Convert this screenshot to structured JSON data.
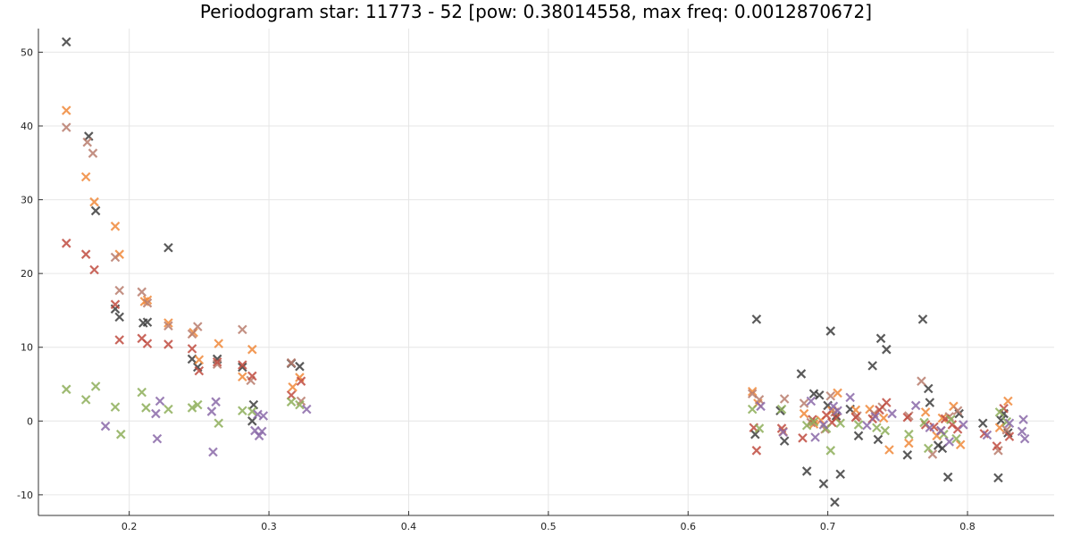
{
  "chart_data": {
    "type": "scatter",
    "title": "Periodogram star: 11773 - 52 [pow: 0.38014558, max freq: 0.0012870672]",
    "xlabel": "",
    "ylabel": "",
    "xlim": [
      0.135,
      0.862
    ],
    "ylim": [
      -12.8,
      53.2
    ],
    "grid": true,
    "legend": "none",
    "marker": "x",
    "x_ticks": [
      0.2,
      0.3,
      0.4,
      0.5,
      0.6,
      0.7,
      0.8
    ],
    "x_tick_labels": [
      "0.2",
      "0.3",
      "0.4",
      "0.5",
      "0.6",
      "0.7",
      "0.8"
    ],
    "y_ticks": [
      -10,
      0,
      10,
      20,
      30,
      40,
      50
    ],
    "y_tick_labels": [
      "-10",
      "0",
      "10",
      "20",
      "30",
      "40",
      "50"
    ],
    "series": [
      {
        "color": "#3d3d3d",
        "points": [
          [
            0.155,
            51.4
          ],
          [
            0.171,
            38.6
          ],
          [
            0.176,
            28.5
          ],
          [
            0.19,
            15.2
          ],
          [
            0.193,
            14.1
          ],
          [
            0.21,
            13.3
          ],
          [
            0.213,
            13.4
          ],
          [
            0.228,
            23.5
          ],
          [
            0.245,
            8.4
          ],
          [
            0.249,
            7.3
          ],
          [
            0.263,
            8.4
          ],
          [
            0.281,
            7.3
          ],
          [
            0.289,
            2.2
          ],
          [
            0.288,
            0.0
          ],
          [
            0.316,
            7.8
          ],
          [
            0.322,
            7.4
          ],
          [
            0.648,
            -1.8
          ],
          [
            0.649,
            13.8
          ],
          [
            0.666,
            1.4
          ],
          [
            0.669,
            -2.7
          ],
          [
            0.681,
            6.4
          ],
          [
            0.685,
            -6.8
          ],
          [
            0.69,
            3.7
          ],
          [
            0.694,
            3.5
          ],
          [
            0.697,
            -8.5
          ],
          [
            0.7,
            2.1
          ],
          [
            0.702,
            12.2
          ],
          [
            0.705,
            -11.0
          ],
          [
            0.706,
            0.7
          ],
          [
            0.709,
            -7.2
          ],
          [
            0.716,
            1.6
          ],
          [
            0.722,
            -2.0
          ],
          [
            0.732,
            7.5
          ],
          [
            0.736,
            -2.5
          ],
          [
            0.738,
            11.2
          ],
          [
            0.742,
            9.7
          ],
          [
            0.757,
            -4.6
          ],
          [
            0.768,
            13.8
          ],
          [
            0.772,
            4.4
          ],
          [
            0.773,
            2.5
          ],
          [
            0.779,
            -3.3
          ],
          [
            0.782,
            -3.7
          ],
          [
            0.786,
            -7.6
          ],
          [
            0.794,
            1.0
          ],
          [
            0.811,
            -0.3
          ],
          [
            0.822,
            -7.7
          ],
          [
            0.824,
            0.1
          ],
          [
            0.826,
            1.0
          ],
          [
            0.829,
            -1.6
          ]
        ]
      },
      {
        "color": "#f0883a",
        "points": [
          [
            0.155,
            42.1
          ],
          [
            0.169,
            33.1
          ],
          [
            0.175,
            29.7
          ],
          [
            0.19,
            26.4
          ],
          [
            0.193,
            22.6
          ],
          [
            0.211,
            16.2
          ],
          [
            0.213,
            16.4
          ],
          [
            0.228,
            13.3
          ],
          [
            0.246,
            12.0
          ],
          [
            0.25,
            8.3
          ],
          [
            0.264,
            10.5
          ],
          [
            0.281,
            6.0
          ],
          [
            0.288,
            9.7
          ],
          [
            0.317,
            4.6
          ],
          [
            0.322,
            5.9
          ],
          [
            0.646,
            4.0
          ],
          [
            0.65,
            2.4
          ],
          [
            0.668,
            -1.4
          ],
          [
            0.683,
            1.0
          ],
          [
            0.69,
            -0.4
          ],
          [
            0.695,
            0.1
          ],
          [
            0.703,
            1.4
          ],
          [
            0.707,
            3.8
          ],
          [
            0.72,
            1.5
          ],
          [
            0.73,
            1.6
          ],
          [
            0.74,
            0.4
          ],
          [
            0.744,
            -3.9
          ],
          [
            0.758,
            -3.0
          ],
          [
            0.77,
            1.2
          ],
          [
            0.778,
            -2.0
          ],
          [
            0.782,
            0.4
          ],
          [
            0.79,
            2.0
          ],
          [
            0.795,
            -3.2
          ],
          [
            0.823,
            -0.9
          ],
          [
            0.829,
            2.7
          ]
        ]
      },
      {
        "color": "#b87d6d",
        "points": [
          [
            0.155,
            39.8
          ],
          [
            0.17,
            37.8
          ],
          [
            0.174,
            36.3
          ],
          [
            0.19,
            22.2
          ],
          [
            0.193,
            17.7
          ],
          [
            0.209,
            17.5
          ],
          [
            0.213,
            16.0
          ],
          [
            0.228,
            12.9
          ],
          [
            0.245,
            11.8
          ],
          [
            0.249,
            12.8
          ],
          [
            0.263,
            7.7
          ],
          [
            0.281,
            12.4
          ],
          [
            0.287,
            5.5
          ],
          [
            0.316,
            7.9
          ],
          [
            0.323,
            2.7
          ],
          [
            0.646,
            3.7
          ],
          [
            0.651,
            2.9
          ],
          [
            0.669,
            3.0
          ],
          [
            0.683,
            2.4
          ],
          [
            0.688,
            -0.2
          ],
          [
            0.698,
            -1.1
          ],
          [
            0.702,
            3.4
          ],
          [
            0.705,
            1.2
          ],
          [
            0.721,
            0.7
          ],
          [
            0.733,
            1.0
          ],
          [
            0.739,
            1.9
          ],
          [
            0.758,
            0.7
          ],
          [
            0.767,
            5.4
          ],
          [
            0.775,
            -4.5
          ],
          [
            0.781,
            -1.3
          ],
          [
            0.787,
            0.6
          ],
          [
            0.793,
            1.4
          ],
          [
            0.822,
            -4.0
          ],
          [
            0.828,
            -1.2
          ]
        ]
      },
      {
        "color": "#c04b3f",
        "points": [
          [
            0.155,
            24.1
          ],
          [
            0.169,
            22.6
          ],
          [
            0.175,
            20.5
          ],
          [
            0.19,
            15.8
          ],
          [
            0.193,
            11.0
          ],
          [
            0.209,
            11.2
          ],
          [
            0.213,
            10.5
          ],
          [
            0.228,
            10.4
          ],
          [
            0.245,
            9.8
          ],
          [
            0.25,
            6.8
          ],
          [
            0.263,
            8.0
          ],
          [
            0.281,
            7.6
          ],
          [
            0.288,
            6.1
          ],
          [
            0.316,
            3.5
          ],
          [
            0.323,
            5.4
          ],
          [
            0.647,
            -0.9
          ],
          [
            0.649,
            -4.0
          ],
          [
            0.667,
            -1.0
          ],
          [
            0.682,
            -2.3
          ],
          [
            0.689,
            0.2
          ],
          [
            0.699,
            0.8
          ],
          [
            0.703,
            -0.2
          ],
          [
            0.706,
            0.4
          ],
          [
            0.72,
            0.5
          ],
          [
            0.732,
            0.3
          ],
          [
            0.737,
            1.5
          ],
          [
            0.742,
            2.5
          ],
          [
            0.757,
            0.5
          ],
          [
            0.77,
            -0.5
          ],
          [
            0.776,
            -0.8
          ],
          [
            0.784,
            0.3
          ],
          [
            0.789,
            -0.5
          ],
          [
            0.793,
            -1.1
          ],
          [
            0.812,
            -1.7
          ],
          [
            0.821,
            -3.4
          ],
          [
            0.826,
            1.7
          ],
          [
            0.83,
            -2.1
          ]
        ]
      },
      {
        "color": "#8dae59",
        "points": [
          [
            0.155,
            4.3
          ],
          [
            0.169,
            2.9
          ],
          [
            0.176,
            4.7
          ],
          [
            0.19,
            1.9
          ],
          [
            0.194,
            -1.8
          ],
          [
            0.209,
            3.9
          ],
          [
            0.212,
            1.8
          ],
          [
            0.228,
            1.6
          ],
          [
            0.245,
            1.8
          ],
          [
            0.249,
            2.2
          ],
          [
            0.264,
            -0.3
          ],
          [
            0.281,
            1.4
          ],
          [
            0.288,
            1.3
          ],
          [
            0.316,
            2.6
          ],
          [
            0.322,
            2.2
          ],
          [
            0.646,
            1.6
          ],
          [
            0.651,
            -1.0
          ],
          [
            0.667,
            1.6
          ],
          [
            0.685,
            -0.6
          ],
          [
            0.69,
            -0.1
          ],
          [
            0.699,
            -1.0
          ],
          [
            0.702,
            -4.0
          ],
          [
            0.709,
            -0.3
          ],
          [
            0.722,
            -0.5
          ],
          [
            0.735,
            -0.9
          ],
          [
            0.741,
            -1.3
          ],
          [
            0.758,
            -1.8
          ],
          [
            0.769,
            -0.2
          ],
          [
            0.772,
            -3.7
          ],
          [
            0.783,
            -1.8
          ],
          [
            0.788,
            0.2
          ],
          [
            0.792,
            -2.4
          ],
          [
            0.823,
            1.2
          ],
          [
            0.828,
            -0.1
          ]
        ]
      },
      {
        "color": "#8a68a8",
        "points": [
          [
            0.183,
            -0.7
          ],
          [
            0.219,
            1.0
          ],
          [
            0.22,
            -2.4
          ],
          [
            0.222,
            2.7
          ],
          [
            0.259,
            1.3
          ],
          [
            0.26,
            -4.2
          ],
          [
            0.262,
            2.6
          ],
          [
            0.292,
            0.9
          ],
          [
            0.29,
            -1.3
          ],
          [
            0.293,
            -2.0
          ],
          [
            0.295,
            -1.4
          ],
          [
            0.296,
            0.7
          ],
          [
            0.327,
            1.6
          ],
          [
            0.652,
            2.0
          ],
          [
            0.668,
            -1.5
          ],
          [
            0.688,
            2.7
          ],
          [
            0.691,
            -2.2
          ],
          [
            0.697,
            -0.5
          ],
          [
            0.704,
            2.0
          ],
          [
            0.707,
            1.4
          ],
          [
            0.716,
            3.2
          ],
          [
            0.728,
            -0.6
          ],
          [
            0.734,
            0.6
          ],
          [
            0.746,
            1.0
          ],
          [
            0.763,
            2.1
          ],
          [
            0.773,
            -0.9
          ],
          [
            0.781,
            -1.3
          ],
          [
            0.787,
            -2.8
          ],
          [
            0.797,
            -0.5
          ],
          [
            0.814,
            -1.9
          ],
          [
            0.83,
            -0.3
          ],
          [
            0.839,
            -1.4
          ],
          [
            0.841,
            -2.4
          ],
          [
            0.84,
            0.2
          ]
        ]
      }
    ]
  }
}
